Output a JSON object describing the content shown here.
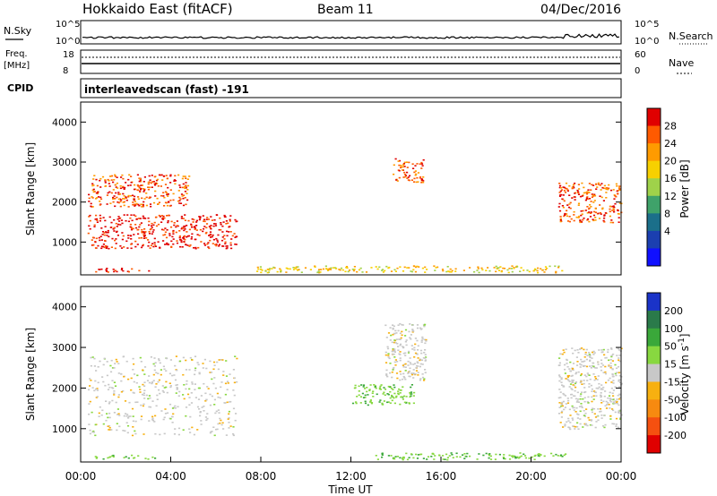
{
  "header": {
    "title": "Hokkaido East (fitACF)",
    "beam": "Beam 11",
    "date": "04/Dec/2016"
  },
  "noise_panel": {
    "left_label": "N.Sky",
    "right_label": "N.Search",
    "y_ticks": [
      "10^5",
      "10^0"
    ]
  },
  "freq_panel": {
    "left_label_line1": "Freq.",
    "left_label_line2": "[MHz]",
    "left_ticks": [
      "18",
      "8"
    ],
    "right_label": "Nave",
    "right_ticks": [
      "60",
      "0"
    ]
  },
  "cpid_panel": {
    "label": "CPID",
    "text": "interleavedscan (fast) -191"
  },
  "chart_data": [
    {
      "type": "heatmap",
      "title": "Power",
      "ylabel": "Slant Range [km]",
      "xlabel": "",
      "colorbar_label": "Power [dB]",
      "colorbar_ticks": [
        "28",
        "24",
        "20",
        "16",
        "12",
        "8",
        "4"
      ],
      "colorbar_colors": [
        "#e00000",
        "#ff5a00",
        "#ff9b00",
        "#f7d000",
        "#9fd24a",
        "#3fa26a",
        "#1b6f8a",
        "#1b3fb0",
        "#1010ff"
      ],
      "y_ticks": [
        "4000",
        "3000",
        "2000",
        "1000"
      ],
      "ylim": [
        180,
        4500
      ],
      "regions": [
        {
          "name": "pre-midnight-arc",
          "t": [
            0.3,
            6.9
          ],
          "r": [
            850,
            1700
          ],
          "value": 28
        },
        {
          "name": "upper-band-left",
          "t": [
            0.3,
            4.8
          ],
          "r": [
            1900,
            2700
          ],
          "value": 26
        },
        {
          "name": "near-range-left",
          "t": [
            0.6,
            3.3
          ],
          "r": [
            260,
            360
          ],
          "value": 30
        },
        {
          "name": "hook-feature",
          "t": [
            13.8,
            15.2
          ],
          "r": [
            2500,
            3100
          ],
          "value": 24
        },
        {
          "name": "evening-band-right",
          "t": [
            21.2,
            24.0
          ],
          "r": [
            1500,
            2500
          ],
          "value": 26
        },
        {
          "name": "near-range-strip",
          "t": [
            7.5,
            21.5
          ],
          "r": [
            250,
            420
          ],
          "value": 16
        }
      ]
    },
    {
      "type": "heatmap",
      "title": "Velocity",
      "ylabel": "Slant Range [km]",
      "xlabel": "Time UT",
      "colorbar_label": "Velocity [m s^-1]",
      "colorbar_ticks": [
        "200",
        "100",
        "50",
        "15",
        "-15",
        "-50",
        "-100",
        "-200"
      ],
      "colorbar_colors": [
        "#1a33c8",
        "#2a7a4a",
        "#3aa83a",
        "#88d840",
        "#c8c8c8",
        "#f7b010",
        "#f78a10",
        "#f55010",
        "#e00000"
      ],
      "y_ticks": [
        "4000",
        "3000",
        "2000",
        "1000"
      ],
      "ylim": [
        180,
        4500
      ],
      "x_ticks": [
        "00:00",
        "04:00",
        "08:00",
        "12:00",
        "16:00",
        "20:00",
        "00:00"
      ],
      "xlim": [
        0,
        24
      ],
      "regions": [
        {
          "name": "pre-midnight-arc",
          "t": [
            0.3,
            6.9
          ],
          "r": [
            850,
            2800
          ],
          "value": 0
        },
        {
          "name": "near-range-left",
          "t": [
            0.6,
            3.3
          ],
          "r": [
            260,
            360
          ],
          "value": 60
        },
        {
          "name": "hook-feature",
          "t": [
            13.5,
            15.3
          ],
          "r": [
            2200,
            3600
          ],
          "value": 0
        },
        {
          "name": "mid-arc",
          "t": [
            12.0,
            14.8
          ],
          "r": [
            1600,
            2100
          ],
          "value": 60
        },
        {
          "name": "near-range-strip",
          "t": [
            13.0,
            21.5
          ],
          "r": [
            250,
            420
          ],
          "value": 60
        },
        {
          "name": "evening-band-right",
          "t": [
            21.2,
            24.0
          ],
          "r": [
            1000,
            3000
          ],
          "value": 0
        }
      ]
    }
  ]
}
